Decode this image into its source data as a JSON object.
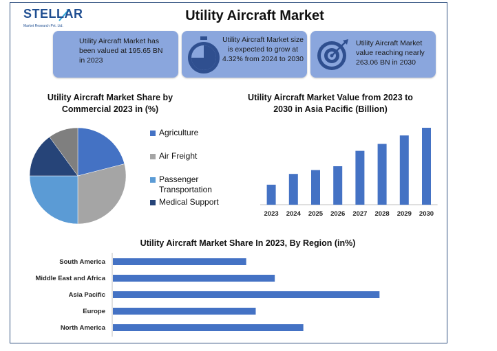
{
  "header": {
    "logo_text": "STELLAR",
    "logo_tagline": "Market Research Pvt. Ltd.",
    "title": "Utility Aircraft Market"
  },
  "stats": [
    {
      "text": "Utility Aircraft Market has been valued at 195.65 BN in 2023",
      "icon": "building-icon"
    },
    {
      "text": "Utility Aircraft Market size is expected to grow at 4.32% from 2024 to 2030",
      "icon": "stopwatch-icon"
    },
    {
      "text": "Utility Aircraft Market value reaching nearly 263.06 BN in 2030",
      "icon": "target-icon"
    }
  ],
  "colors": {
    "card_bg": "#8aa6dd",
    "bar_blue": "#4472c4",
    "agriculture": "#4472c4",
    "air_freight": "#a5a5a5",
    "passenger": "#5b9bd5",
    "medical": "#264478",
    "other_slice": "#7f7f7f"
  },
  "chart_data": [
    {
      "type": "pie",
      "title": "Utility Aircraft Market Share by Commercial 2023 in (%)",
      "categories": [
        "Agriculture",
        "Air Freight",
        "Passenger Transportation",
        "Medical Support",
        ""
      ],
      "legend_labels": [
        "Agriculture",
        "Air Freight",
        "Passenger Transportation",
        "Medical Support"
      ],
      "values": [
        21,
        29,
        25,
        15,
        10
      ],
      "legend": "right"
    },
    {
      "type": "bar",
      "title": "Utility Aircraft Market Value from 2023 to 2030 in Asia Pacific (Billion)",
      "categories": [
        "2023",
        "2024",
        "2025",
        "2026",
        "2027",
        "2028",
        "2029",
        "2030"
      ],
      "values": [
        26,
        40,
        45,
        50,
        70,
        79,
        90,
        100
      ],
      "ylim": [
        0,
        100
      ],
      "grid": false
    },
    {
      "type": "bar",
      "orientation": "horizontal",
      "title": "Utility Aircraft Market Share In 2023, By Region (in%)",
      "categories": [
        "South America",
        "Middle East and Africa",
        "Asia Pacific",
        "Europe",
        "North America"
      ],
      "values": [
        14,
        17,
        28,
        15,
        20
      ],
      "xlim": [
        0,
        30
      ],
      "grid": false
    }
  ]
}
